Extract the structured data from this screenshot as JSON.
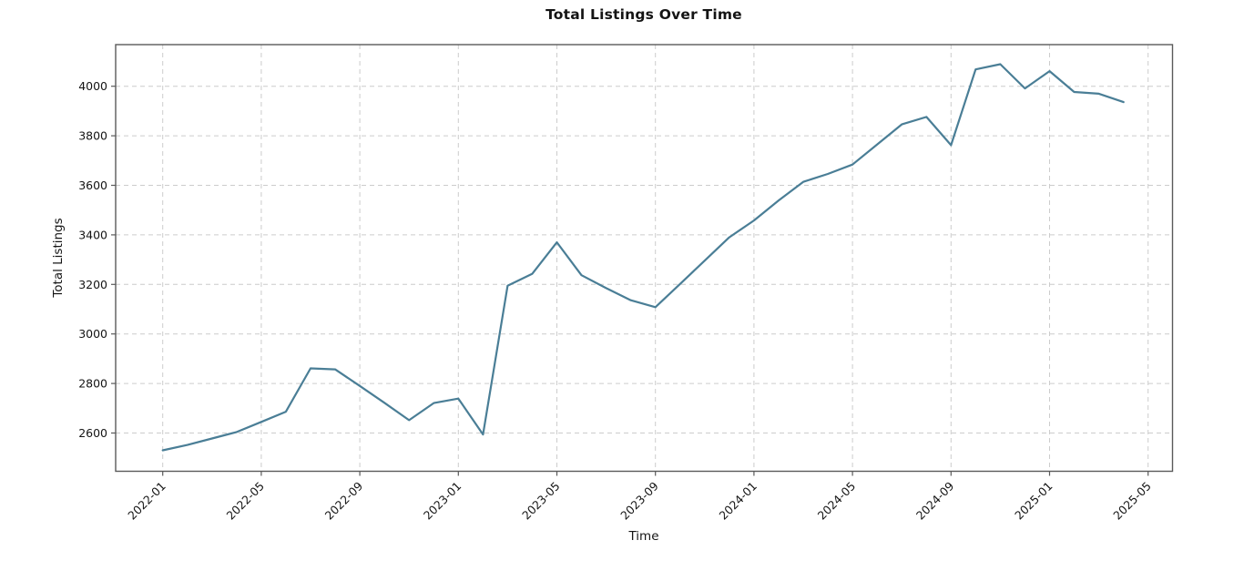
{
  "chart_data": {
    "type": "line",
    "title": "Total Listings Over Time",
    "xlabel": "Time",
    "ylabel": "Total Listings",
    "x": [
      "2022-01",
      "2022-02",
      "2022-03",
      "2022-04",
      "2022-05",
      "2022-06",
      "2022-07",
      "2022-08",
      "2022-09",
      "2022-10",
      "2022-11",
      "2022-12",
      "2023-01",
      "2023-02",
      "2023-03",
      "2023-04",
      "2023-05",
      "2023-06",
      "2023-07",
      "2023-08",
      "2023-09",
      "2023-10",
      "2023-11",
      "2023-12",
      "2024-01",
      "2024-02",
      "2024-03",
      "2024-04",
      "2024-05",
      "2024-06",
      "2024-07",
      "2024-08",
      "2024-09",
      "2024-10",
      "2024-11",
      "2024-12",
      "2025-01",
      "2025-02",
      "2025-03",
      "2025-04"
    ],
    "values": [
      2530,
      2552,
      2578,
      2604,
      2645,
      2686,
      2861,
      2857,
      2790,
      2722,
      2652,
      2721,
      2739,
      2594,
      3195,
      3243,
      3370,
      3237,
      3185,
      3136,
      3108,
      3202,
      3296,
      3390,
      3458,
      3539,
      3614,
      3646,
      3684,
      3765,
      3846,
      3876,
      3762,
      4068,
      4089,
      3991,
      4061,
      3977,
      3970,
      3936
    ],
    "x_ticks": [
      {
        "label": "2022-01",
        "month_index": 0
      },
      {
        "label": "2022-05",
        "month_index": 4
      },
      {
        "label": "2022-09",
        "month_index": 8
      },
      {
        "label": "2023-01",
        "month_index": 12
      },
      {
        "label": "2023-05",
        "month_index": 16
      },
      {
        "label": "2023-09",
        "month_index": 20
      },
      {
        "label": "2024-01",
        "month_index": 24
      },
      {
        "label": "2024-05",
        "month_index": 28
      },
      {
        "label": "2024-09",
        "month_index": 32
      },
      {
        "label": "2025-01",
        "month_index": 36
      },
      {
        "label": "2025-05",
        "month_index": 40
      }
    ],
    "y_ticks": [
      2600,
      2800,
      3000,
      3200,
      3400,
      3600,
      3800,
      4000
    ],
    "ylim": [
      2450,
      4170
    ],
    "grid": "dashed",
    "legend": "none",
    "line_color": "#4a7e96",
    "grid_color": "#cccccc",
    "spine_color": "#5a5a5a",
    "text_color": "#141414"
  }
}
